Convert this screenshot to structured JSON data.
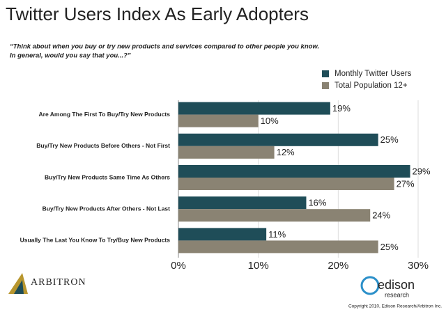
{
  "chart_data": {
    "type": "hbar",
    "title": "Twitter Users Index As Early Adopters",
    "subtitle": [
      "“Think about when you buy or try new products and services compared to other people you know.",
      "In general, would you say that you...?”"
    ],
    "categories": [
      "Are Among The First To Buy/Try New Products",
      "Buy/Try New Products Before Others - Not First",
      "Buy/Try New Products Same Time As Others",
      "Buy/Try New Products After Others - Not Last",
      "Usually The Last You Know To Try/Buy New Products"
    ],
    "series": [
      {
        "name": "Monthly Twitter Users",
        "color": "#1f4d58",
        "values": [
          19,
          25,
          29,
          16,
          11
        ],
        "value_labels": [
          "19%",
          "25%",
          "29%",
          "16%",
          "11%"
        ]
      },
      {
        "name": "Total Population 12+",
        "color": "#8a8373",
        "values": [
          10,
          12,
          27,
          24,
          25
        ],
        "value_labels": [
          "10%",
          "12%",
          "27%",
          "24%",
          "25%"
        ]
      }
    ],
    "xlim": [
      0,
      30
    ],
    "xticks": [
      {
        "value": 0,
        "label": "0%"
      },
      {
        "value": 10,
        "label": "10%"
      },
      {
        "value": 20,
        "label": "20%"
      },
      {
        "value": 30,
        "label": "30%"
      }
    ],
    "grid": true,
    "legend": "top-right"
  },
  "footer": {
    "left_logo": "ARBITRON",
    "right_logo": "edison",
    "right_logo_sub": "research",
    "copyright": "Copyright 2010, Edison Research/Arbitron Inc."
  }
}
